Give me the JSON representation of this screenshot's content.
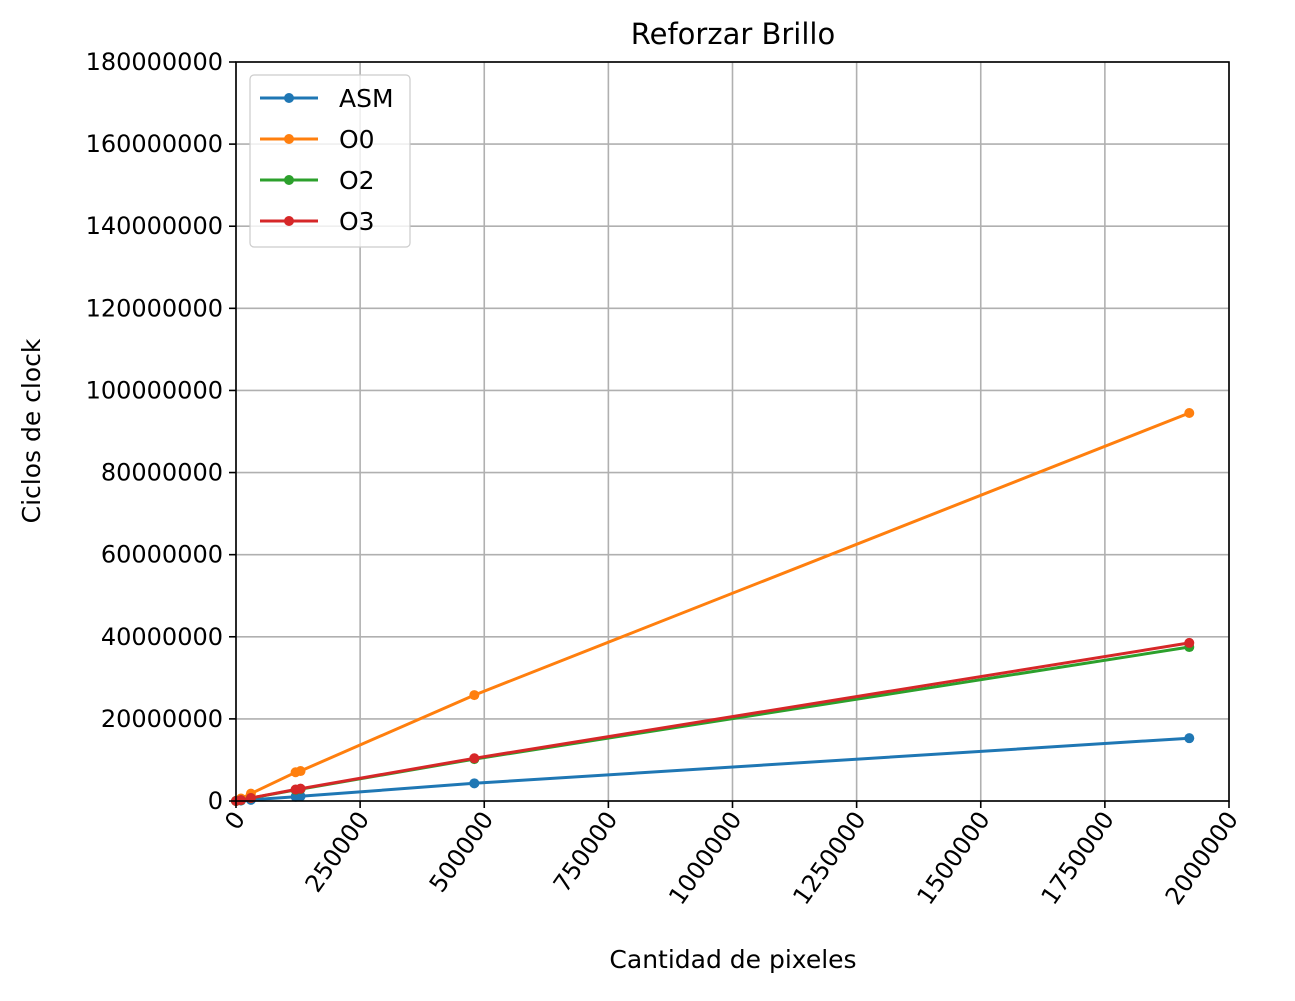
{
  "chart_data": {
    "type": "line",
    "title": "Reforzar Brillo",
    "xlabel": "Cantidad de pixeles",
    "ylabel": "Ciclos de clock",
    "xlim": [
      0,
      2000000
    ],
    "ylim": [
      0,
      180000000
    ],
    "xticks": [
      "0",
      "250000",
      "500000",
      "750000",
      "1000000",
      "1250000",
      "1500000",
      "1750000",
      "2000000"
    ],
    "yticks": [
      "0",
      "20000000",
      "40000000",
      "60000000",
      "80000000",
      "100000000",
      "120000000",
      "140000000",
      "160000000",
      "180000000"
    ],
    "grid": true,
    "legend": "upper-left",
    "series": [
      {
        "name": "ASM",
        "color": "#1f77b4",
        "points": [
          [
            0,
            0
          ],
          [
            10000,
            90000
          ],
          [
            30000,
            270000
          ],
          [
            120000,
            1050000
          ],
          [
            130000,
            1150000
          ],
          [
            480000,
            4300000
          ],
          [
            1920000,
            15300000
          ]
        ]
      },
      {
        "name": "O0",
        "color": "#ff7f0e",
        "points": [
          [
            0,
            0
          ],
          [
            10000,
            600000
          ],
          [
            30000,
            1800000
          ],
          [
            120000,
            7000000
          ],
          [
            130000,
            7300000
          ],
          [
            480000,
            25800000
          ],
          [
            1920000,
            94500000
          ]
        ]
      },
      {
        "name": "O2",
        "color": "#2ca02c",
        "points": [
          [
            0,
            0
          ],
          [
            10000,
            200000
          ],
          [
            30000,
            700000
          ],
          [
            120000,
            2700000
          ],
          [
            130000,
            2900000
          ],
          [
            480000,
            10200000
          ],
          [
            1920000,
            37500000
          ]
        ]
      },
      {
        "name": "O3",
        "color": "#d62728",
        "points": [
          [
            0,
            0
          ],
          [
            10000,
            210000
          ],
          [
            30000,
            720000
          ],
          [
            120000,
            2800000
          ],
          [
            130000,
            3000000
          ],
          [
            480000,
            10400000
          ],
          [
            1920000,
            38500000
          ]
        ]
      }
    ]
  }
}
